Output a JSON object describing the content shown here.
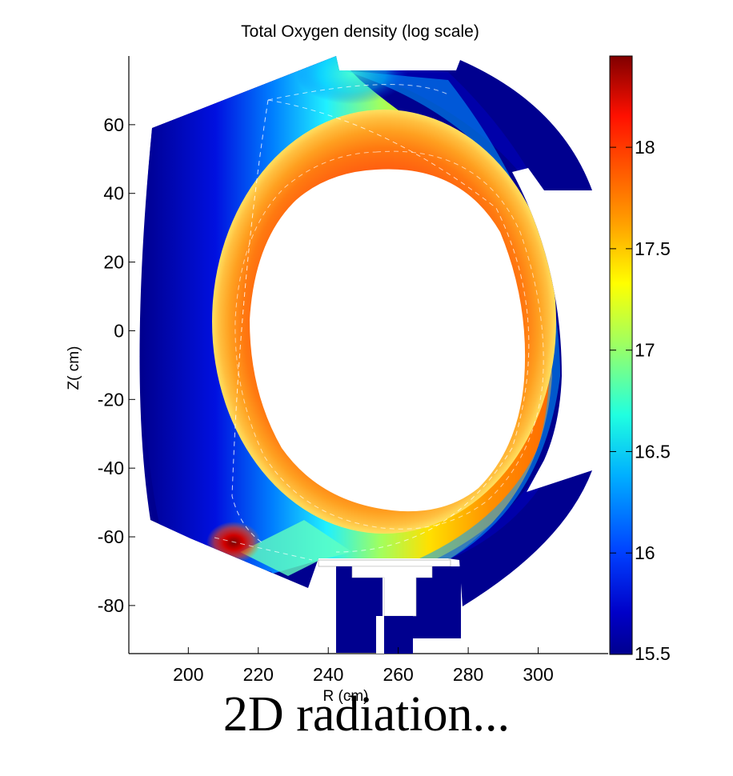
{
  "chart_data": {
    "type": "heatmap",
    "title": "Total Oxygen density (log scale)",
    "xlabel": "R (cm)",
    "ylabel": "Z( cm)",
    "xlim": [
      183,
      320
    ],
    "ylim": [
      -94,
      80
    ],
    "x_ticks": [
      "200",
      "220",
      "240",
      "260",
      "280",
      "300"
    ],
    "x_tick_values": [
      200,
      220,
      240,
      260,
      280,
      300
    ],
    "y_ticks": [
      "60",
      "40",
      "20",
      "0",
      "-20",
      "-40",
      "-60",
      "-80"
    ],
    "y_tick_values": [
      60,
      40,
      20,
      0,
      -20,
      -40,
      -60,
      -80
    ],
    "colorbar": {
      "range": [
        15.5,
        18.45
      ],
      "ticks": [
        "18",
        "17.5",
        "17",
        "16.5",
        "16",
        "15.5"
      ],
      "tick_values": [
        18,
        17.5,
        17,
        16.5,
        16,
        15.5
      ],
      "colormap": "jet",
      "colors": [
        "#00008f",
        "#0000ff",
        "#0080ff",
        "#00ffff",
        "#80ff80",
        "#ffff00",
        "#ff8000",
        "#ff0000",
        "#800000"
      ]
    },
    "field_description": "2D oxygen density in a tokamak poloidal cross-section; highest (~18) near the plasma edge ring and lower-left divertor leg, lowest (~15.5) at the outer wall",
    "grid": false
  },
  "caption": "2D radiation..."
}
